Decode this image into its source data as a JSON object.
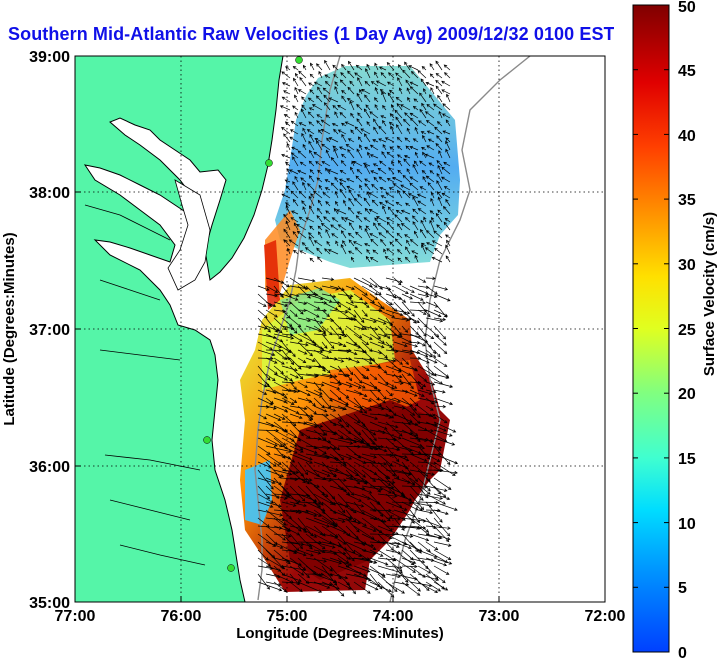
{
  "title": "Southern Mid-Atlantic Raw Velocities (1 Day Avg) 2009/12/32 0100 EST",
  "map": {
    "xlabel": "Longitude (Degrees:Minutes)",
    "ylabel": "Latitude (Degrees:Minutes)",
    "x_ticks": [
      "77:00",
      "76:00",
      "75:00",
      "74:00",
      "73:00",
      "72:00"
    ],
    "y_ticks": [
      "39:00",
      "38:00",
      "37:00",
      "36:00",
      "35:00"
    ],
    "lon_range": [
      -77,
      -72
    ],
    "lat_range": [
      35,
      39
    ],
    "land_color": "#55f5a8",
    "coast_color": "#000000",
    "grid": true
  },
  "colorbar": {
    "label": "Surface Velocity (cm/s)",
    "range": [
      0,
      50
    ],
    "ticks": [
      "0",
      "5",
      "10",
      "15",
      "20",
      "25",
      "30",
      "35",
      "40",
      "45",
      "50"
    ],
    "colormap": "jet",
    "overflow_color": "#800000"
  }
}
